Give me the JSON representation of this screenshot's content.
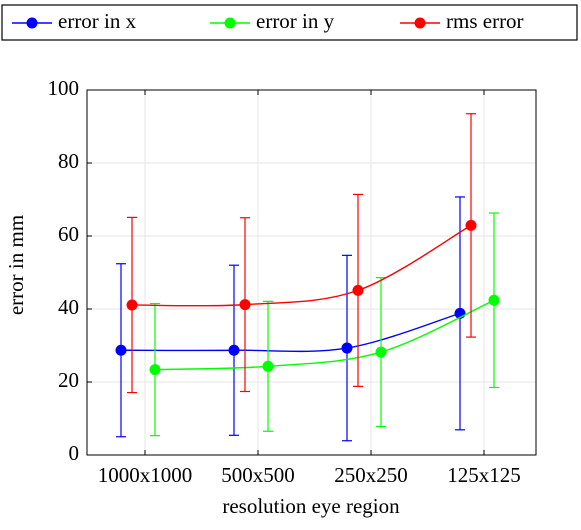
{
  "chart_data": {
    "type": "line",
    "categories": [
      "1000x1000",
      "500x500",
      "250x250",
      "125x125"
    ],
    "xlabel": "resolution eye region",
    "ylabel": "error in mm",
    "ylim": [
      0,
      100
    ],
    "yticks": [
      0,
      20,
      40,
      60,
      80,
      100
    ],
    "grid": true,
    "legend": "top",
    "series": [
      {
        "name": "error in x",
        "color": "#0000ff",
        "values": [
          28.7,
          28.7,
          29.3,
          38.8
        ],
        "errors": [
          23.7,
          23.3,
          25.4,
          31.9
        ]
      },
      {
        "name": "error in y",
        "color": "#00ff00",
        "values": [
          23.4,
          24.3,
          28.2,
          42.4
        ],
        "errors": [
          18.1,
          17.8,
          20.4,
          23.9
        ]
      },
      {
        "name": "rms error",
        "color": "#ff0000",
        "values": [
          41.1,
          41.2,
          45.1,
          62.9
        ],
        "errors": [
          24.0,
          23.8,
          26.3,
          30.6
        ]
      }
    ]
  }
}
